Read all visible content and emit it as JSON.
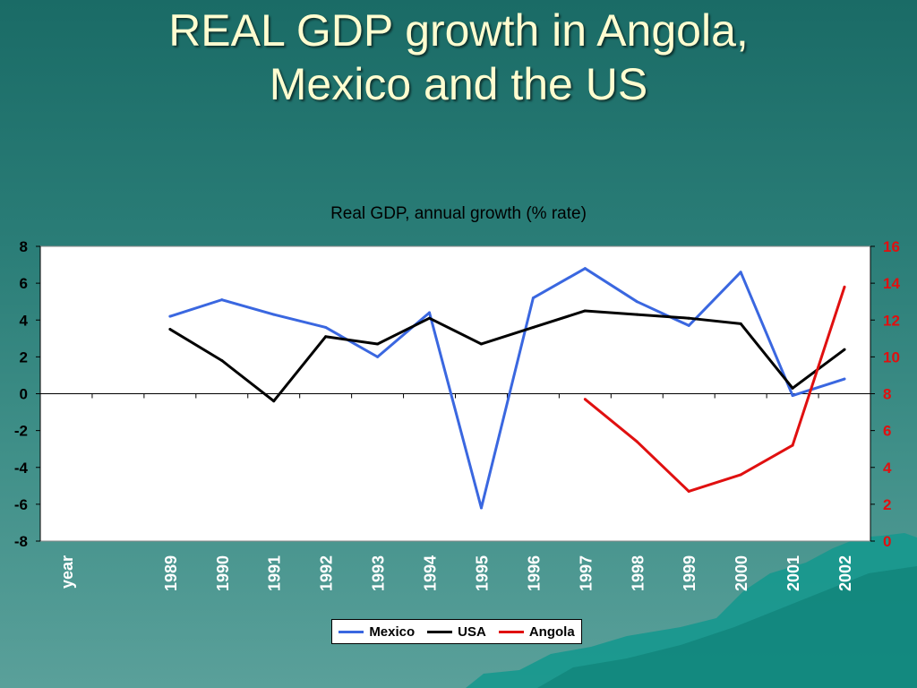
{
  "slide": {
    "title_line1": "REAL GDP growth in Angola,",
    "title_line2": "Mexico and the US"
  },
  "colors": {
    "mexico": "#3a67e0",
    "usa": "#000000",
    "angola": "#e01010",
    "right_axis": "#e01010"
  },
  "chart_data": {
    "type": "line",
    "title": "Real GDP, annual growth (% rate)",
    "xlabel": "year",
    "categories": [
      "1989",
      "1990",
      "1991",
      "1992",
      "1993",
      "1994",
      "1995",
      "1996",
      "1997",
      "1998",
      "1999",
      "2000",
      "2001",
      "2002"
    ],
    "left_axis": {
      "ylim": [
        -8,
        8
      ],
      "ticks": [
        "8",
        "6",
        "4",
        "2",
        "0",
        "-2",
        "-4",
        "-6",
        "-8"
      ]
    },
    "right_axis": {
      "ylim": [
        0,
        16
      ],
      "ticks": [
        "16",
        "14",
        "12",
        "10",
        "8",
        "6",
        "4",
        "2",
        "0"
      ]
    },
    "series": [
      {
        "name": "Mexico",
        "axis": "left",
        "values": [
          4.2,
          5.1,
          4.3,
          3.6,
          2.0,
          4.4,
          -6.2,
          5.2,
          6.8,
          5.0,
          3.7,
          6.6,
          -0.1,
          0.8
        ]
      },
      {
        "name": "USA",
        "axis": "left",
        "values": [
          3.5,
          1.8,
          -0.4,
          3.1,
          2.7,
          4.1,
          2.7,
          3.6,
          4.5,
          4.3,
          4.1,
          3.8,
          0.3,
          2.4
        ]
      },
      {
        "name": "Angola",
        "axis": "right",
        "values": [
          null,
          null,
          null,
          null,
          null,
          null,
          null,
          null,
          7.7,
          5.4,
          2.7,
          3.6,
          5.2,
          13.8
        ]
      }
    ],
    "legend": {
      "position": "bottom",
      "items": [
        "Mexico",
        "USA",
        "Angola"
      ]
    },
    "grid": false
  }
}
